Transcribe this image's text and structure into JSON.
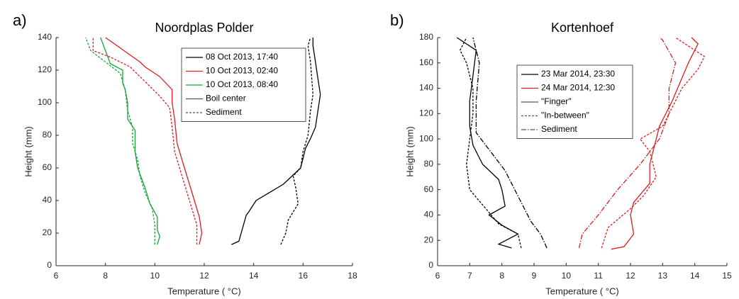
{
  "chart_data": [
    {
      "type": "line",
      "label": "a)",
      "title": "Noordplas Polder",
      "x_label": "Temperature ( °C)",
      "y_label": "Height (mm)",
      "xlim": [
        6,
        18
      ],
      "xticks": [
        6,
        8,
        10,
        12,
        14,
        16,
        18
      ],
      "ylim": [
        0,
        140
      ],
      "yticks": [
        0,
        20,
        40,
        60,
        80,
        100,
        120,
        140
      ],
      "line_styles": [
        {
          "name": "Boil center",
          "dash": "solid"
        },
        {
          "name": "Sediment",
          "dash": "dashed"
        }
      ],
      "series": [
        {
          "name": "08 Oct 2013, 17:40",
          "color": "#000000",
          "profiles": [
            {
              "x": [
                13.1,
                13.4,
                13.7,
                13.8,
                14.1,
                15.2,
                15.9,
                16.1,
                16.3,
                16.5,
                16.6,
                16.7,
                16.6,
                16.5,
                16.4,
                16.4
              ],
              "values": [
                13,
                15,
                31,
                33,
                40,
                50,
                60,
                72,
                78,
                85,
                95,
                105,
                115,
                125,
                135,
                140
              ]
            },
            {
              "x": [
                15.1,
                15.3,
                15.4,
                15.8,
                15.7,
                15.6,
                15.9,
                16.0,
                16.2,
                16.3,
                16.4,
                16.3,
                16.2,
                16.3
              ],
              "values": [
                13,
                20,
                28,
                38,
                48,
                55,
                60,
                70,
                80,
                95,
                105,
                125,
                135,
                140
              ]
            }
          ]
        },
        {
          "name": "10 Oct 2013, 02:40",
          "color": "#e41a1c",
          "profiles": [
            {
              "x": [
                11.8,
                11.9,
                11.8,
                11.5,
                11.2,
                10.9,
                10.8,
                10.7,
                10.7,
                10.2,
                9.6,
                9.4,
                8.0
              ],
              "values": [
                13,
                20,
                30,
                45,
                60,
                75,
                90,
                100,
                108,
                116,
                122,
                125,
                140
              ]
            },
            {
              "x": [
                11.7,
                11.7,
                11.4,
                11.1,
                10.8,
                10.7,
                10.6,
                10.2,
                9.6,
                9.0,
                8.2,
                7.5,
                7.5
              ],
              "values": [
                13,
                25,
                40,
                55,
                70,
                85,
                97,
                104,
                113,
                122,
                128,
                132,
                140
              ]
            }
          ]
        },
        {
          "name": "10 Oct 2013, 08:40",
          "color": "#1aa33a",
          "profiles": [
            {
              "x": [
                10.1,
                10.2,
                10.1,
                10.1,
                9.8,
                9.6,
                9.3,
                9.2,
                9.2,
                8.9,
                8.9,
                8.8,
                8.7,
                8.7,
                8.2,
                7.8
              ],
              "values": [
                13,
                18,
                22,
                30,
                38,
                48,
                60,
                70,
                83,
                90,
                100,
                108,
                112,
                120,
                124,
                140
              ]
            },
            {
              "x": [
                10.0,
                10.0,
                9.9,
                9.6,
                9.4,
                9.3,
                9.1,
                9.1,
                8.9,
                8.8,
                8.6,
                8.0,
                7.4,
                7.2
              ],
              "values": [
                13,
                25,
                35,
                45,
                55,
                65,
                75,
                85,
                95,
                108,
                118,
                125,
                132,
                140
              ]
            }
          ]
        }
      ]
    },
    {
      "type": "line",
      "label": "b)",
      "title": "Kortenhoef",
      "x_label": "Temperature ( °C)",
      "y_label": "Height (mm)",
      "xlim": [
        6,
        15
      ],
      "xticks": [
        6,
        7,
        8,
        9,
        10,
        11,
        12,
        13,
        14,
        15
      ],
      "ylim": [
        0,
        180
      ],
      "yticks": [
        0,
        20,
        40,
        60,
        80,
        100,
        120,
        140,
        160,
        180
      ],
      "line_styles": [
        {
          "name": "\"Finger\"",
          "dash": "solid"
        },
        {
          "name": "\"In-between\"",
          "dash": "dashed"
        },
        {
          "name": "Sediment",
          "dash": "dashdot"
        }
      ],
      "series": [
        {
          "name": "23 Mar 2014, 23:30",
          "color": "#000000",
          "profiles": [
            {
              "x": [
                8.3,
                7.9,
                8.5,
                8.0,
                7.6,
                8.1,
                8.0,
                7.9,
                7.4,
                7.1,
                7.0,
                7.0,
                7.1,
                7.2,
                6.6
              ],
              "values": [
                14,
                17,
                25,
                32,
                40,
                47,
                60,
                68,
                80,
                95,
                110,
                130,
                150,
                170,
                180
              ]
            },
            {
              "x": [
                8.6,
                8.5,
                7.9,
                7.4,
                7.0,
                6.9,
                7.0,
                7.1,
                7.1,
                6.9,
                6.7,
                6.9
              ],
              "values": [
                14,
                25,
                33,
                48,
                60,
                80,
                100,
                120,
                140,
                160,
                170,
                180
              ]
            },
            {
              "x": [
                9.4,
                9.2,
                8.9,
                8.5,
                8.1,
                7.5,
                7.2,
                7.2,
                7.3,
                7.1
              ],
              "values": [
                14,
                25,
                35,
                55,
                75,
                95,
                105,
                130,
                160,
                180
              ]
            }
          ]
        },
        {
          "name": "24 Mar 2014, 12:30",
          "color": "#e41a1c",
          "profiles": [
            {
              "x": [
                11.4,
                11.8,
                12.1,
                12.0,
                12.1,
                12.6,
                12.6,
                12.7,
                12.9,
                13.3,
                13.8,
                14.1,
                13.9
              ],
              "values": [
                13,
                15,
                25,
                40,
                50,
                65,
                80,
                90,
                110,
                130,
                160,
                175,
                180
              ]
            },
            {
              "x": [
                11.1,
                11.3,
                12.0,
                12.4,
                12.8,
                12.6,
                12.3,
                13.0,
                13.3,
                13.6,
                14.1,
                14.3,
                13.4
              ],
              "values": [
                14,
                30,
                45,
                55,
                70,
                90,
                100,
                110,
                125,
                140,
                155,
                165,
                180
              ]
            },
            {
              "x": [
                10.4,
                10.5,
                11.0,
                11.6,
                12.3,
                12.9,
                13.2,
                13.2,
                13.4,
                13.0,
                12.9
              ],
              "values": [
                14,
                25,
                40,
                60,
                80,
                100,
                120,
                140,
                160,
                178,
                180
              ]
            }
          ]
        }
      ]
    }
  ]
}
